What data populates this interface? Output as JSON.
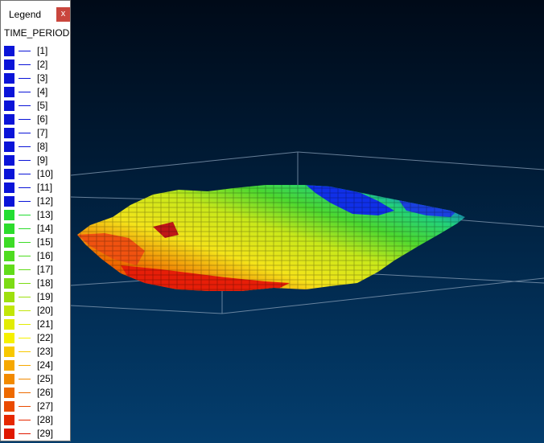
{
  "legend": {
    "title": "Legend",
    "close_label": "x",
    "field": "TIME_PERIOD",
    "items": [
      {
        "label": "[1]",
        "color": "#0a14d8"
      },
      {
        "label": "[2]",
        "color": "#0a14d8"
      },
      {
        "label": "[3]",
        "color": "#0a14d8"
      },
      {
        "label": "[4]",
        "color": "#0a14d8"
      },
      {
        "label": "[5]",
        "color": "#0a14d8"
      },
      {
        "label": "[6]",
        "color": "#0a14d8"
      },
      {
        "label": "[7]",
        "color": "#0a14d8"
      },
      {
        "label": "[8]",
        "color": "#0a14d8"
      },
      {
        "label": "[9]",
        "color": "#0a14d8"
      },
      {
        "label": "[10]",
        "color": "#0a14d8"
      },
      {
        "label": "[11]",
        "color": "#0a14d8"
      },
      {
        "label": "[12]",
        "color": "#0a14d8"
      },
      {
        "label": "[13]",
        "color": "#22dd32"
      },
      {
        "label": "[14]",
        "color": "#2cdc2c"
      },
      {
        "label": "[15]",
        "color": "#3ddc26"
      },
      {
        "label": "[16]",
        "color": "#4edc20"
      },
      {
        "label": "[17]",
        "color": "#62dc1a"
      },
      {
        "label": "[18]",
        "color": "#7cdc14"
      },
      {
        "label": "[19]",
        "color": "#9ee00e"
      },
      {
        "label": "[20]",
        "color": "#c2e608"
      },
      {
        "label": "[21]",
        "color": "#e2ec04"
      },
      {
        "label": "[22]",
        "color": "#f6f000"
      },
      {
        "label": "[23]",
        "color": "#f8c800"
      },
      {
        "label": "[24]",
        "color": "#f6a800"
      },
      {
        "label": "[25]",
        "color": "#f28a00"
      },
      {
        "label": "[26]",
        "color": "#ee6a00"
      },
      {
        "label": "[27]",
        "color": "#ea4a00"
      },
      {
        "label": "[28]",
        "color": "#e62800"
      },
      {
        "label": "[29]",
        "color": "#e01800"
      }
    ]
  }
}
